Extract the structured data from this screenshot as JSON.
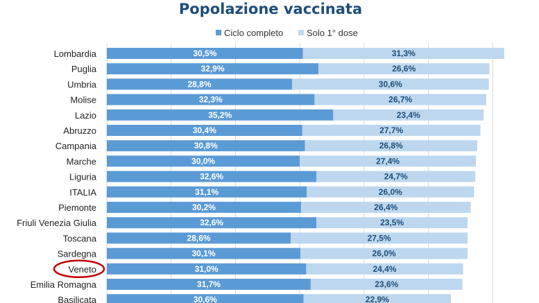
{
  "chart_data": {
    "type": "bar",
    "orientation": "horizontal",
    "stacked": true,
    "title": "Popolazione vaccinata",
    "legend_position": "top",
    "categories": [
      "Lombardia",
      "Puglia",
      "Umbria",
      "Molise",
      "Lazio",
      "Abruzzo",
      "Campania",
      "Marche",
      "Liguria",
      "ITALIA",
      "Piemonte",
      "Friuli Venezia Giulia",
      "Toscana",
      "Sardegna",
      "Veneto",
      "Emilia Romagna",
      "Basilicata"
    ],
    "series": [
      {
        "name": "Ciclo completo",
        "color": "#5b9bd5",
        "values": [
          30.5,
          32.9,
          28.8,
          32.3,
          35.2,
          30.4,
          30.8,
          30.0,
          32.6,
          31.1,
          30.2,
          32.6,
          28.6,
          30.1,
          31.0,
          31.7,
          30.6
        ],
        "labels": [
          "30,5%",
          "32,9%",
          "28,8%",
          "32,3%",
          "35,2%",
          "30,4%",
          "30,8%",
          "30,0%",
          "32,6%",
          "31,1%",
          "30,2%",
          "32,6%",
          "28,6%",
          "30,1%",
          "31,0%",
          "31,7%",
          "30,6%"
        ]
      },
      {
        "name": "Solo 1° dose",
        "color": "#bdd7ee",
        "values": [
          31.3,
          26.6,
          30.6,
          26.7,
          23.4,
          27.7,
          26.8,
          27.4,
          24.7,
          26.0,
          26.4,
          23.5,
          27.5,
          26.0,
          24.4,
          23.6,
          22.9
        ],
        "labels": [
          "31,3%",
          "26,6%",
          "30,6%",
          "26,7%",
          "23,4%",
          "27,7%",
          "26,8%",
          "27,4%",
          "24,7%",
          "26,0%",
          "26,4%",
          "23,5%",
          "27,5%",
          "26,0%",
          "24,4%",
          "23,6%",
          "22,9%"
        ]
      }
    ],
    "xlim": [
      0,
      62
    ],
    "grid": true,
    "grid_step": 10,
    "highlighted_category": "Veneto",
    "highlight_color": "#c00000"
  }
}
